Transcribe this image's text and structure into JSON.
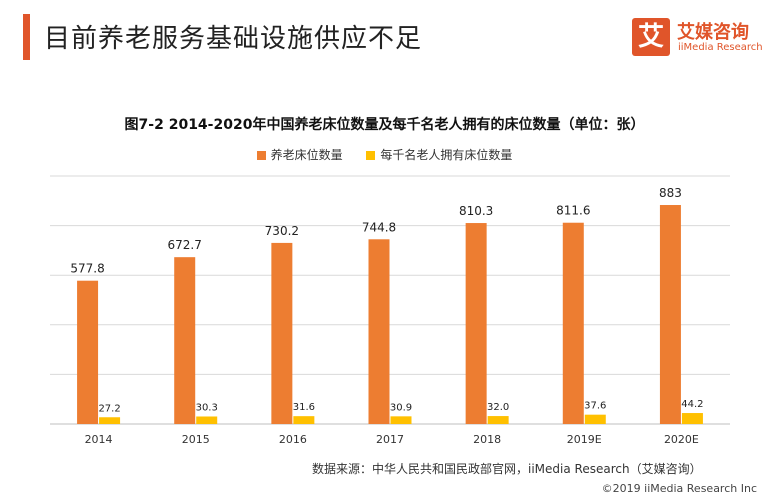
{
  "page": {
    "title": "目前养老服务基础设施供应不足"
  },
  "logo": {
    "glyph": "艾",
    "name_cn": "艾媒咨询",
    "name_en": "iiMedia Research"
  },
  "colors": {
    "accent": "#e0552a",
    "bar_primary": "#ed7d31",
    "bar_secondary": "#ffc000",
    "grid": "#d9d9d9"
  },
  "chart_data": {
    "type": "bar",
    "title": "图7-2 2014-2020年中国养老床位数量及每千名老人拥有的床位数量（单位：张）",
    "categories": [
      "2014",
      "2015",
      "2016",
      "2017",
      "2018",
      "2019E",
      "2020E"
    ],
    "series": [
      {
        "name": "养老床位数量",
        "values": [
          577.8,
          672.7,
          730.2,
          744.8,
          810.3,
          811.6,
          883
        ],
        "labels": [
          "577.8",
          "672.7",
          "730.2",
          "744.8",
          "810.3",
          "811.6",
          "883"
        ]
      },
      {
        "name": "每千名老人拥有床位数量",
        "values": [
          27.2,
          30.3,
          31.6,
          30.9,
          32.0,
          37.6,
          44.2
        ],
        "labels": [
          "27.2",
          "30.3",
          "31.6",
          "30.9",
          "32.0",
          "37.6",
          "44.2"
        ]
      }
    ],
    "ylim": [
      0,
      1000
    ],
    "grid": true,
    "legend_position": "top"
  },
  "source_text": "数据来源：中华人民共和国民政部官网，iiMedia Research（艾媒咨询）",
  "footer_text": "©2019 iiMedia Research Inc"
}
